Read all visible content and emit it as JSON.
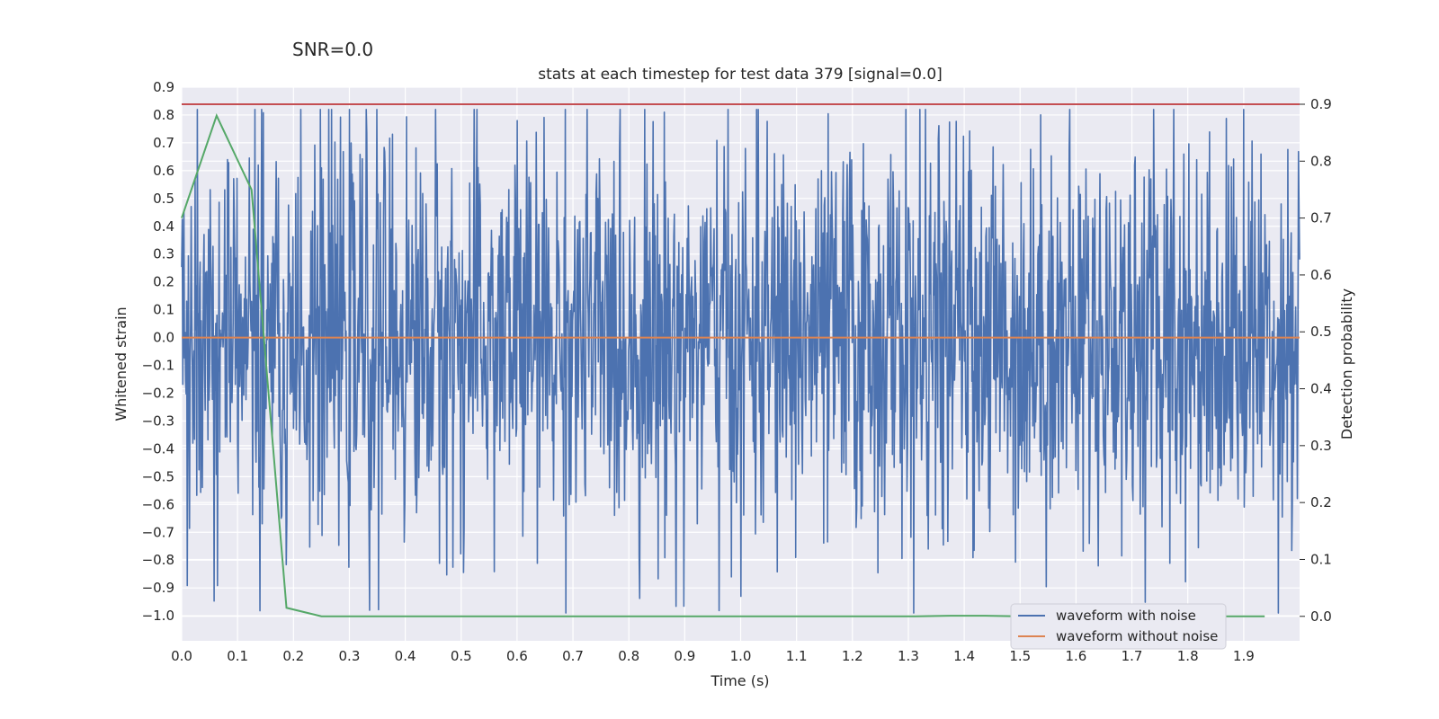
{
  "suptitle": "SNR=0.0",
  "chart_data": {
    "type": "line",
    "title": "stats at each timestep for test data 379 [signal=0.0]",
    "xlabel": "Time (s)",
    "ylabel": "Whitened strain",
    "y2label": "Detection probability",
    "xlim": [
      0.0,
      2.0
    ],
    "ylim": [
      -1.09,
      0.9
    ],
    "y2lim": [
      -0.043,
      0.93
    ],
    "x_ticks": [
      "0.0",
      "0.1",
      "0.2",
      "0.3",
      "0.4",
      "0.5",
      "0.6",
      "0.7",
      "0.8",
      "0.9",
      "1.0",
      "1.1",
      "1.2",
      "1.3",
      "1.4",
      "1.5",
      "1.6",
      "1.7",
      "1.8",
      "1.9"
    ],
    "y_ticks": [
      "0.9",
      "0.8",
      "0.7",
      "0.6",
      "0.5",
      "0.4",
      "0.3",
      "0.2",
      "0.1",
      "0.0",
      "−0.1",
      "−0.2",
      "−0.3",
      "−0.4",
      "−0.5",
      "−0.6",
      "−0.7",
      "−0.8",
      "−0.9",
      "−1.0"
    ],
    "y2_ticks": [
      "0.9",
      "0.8",
      "0.7",
      "0.6",
      "0.5",
      "0.4",
      "0.3",
      "0.2",
      "0.1",
      "0.0"
    ],
    "grid": true,
    "legend": {
      "placement": "lower-right",
      "entries": [
        "waveform with noise",
        "waveform without noise"
      ]
    },
    "colors": {
      "noise": "#4c72b0",
      "clean": "#dd8452",
      "probability": "#55a868",
      "threshold": "#c44e52",
      "background": "#eaeaf2"
    },
    "series": [
      {
        "name": "waveform with noise",
        "axis": "left",
        "noise_model": {
          "samples": 2000,
          "x_start": 0.0,
          "x_end": 2.0,
          "amplitude_typical": 0.35,
          "min": -0.99,
          "max": 0.82
        },
        "notable_points": [
          [
            0.336,
            -0.98
          ],
          [
            1.31,
            -0.99
          ],
          [
            1.775,
            0.82
          ],
          [
            0.6,
            0.78
          ],
          [
            1.0,
            -0.93
          ]
        ]
      },
      {
        "name": "waveform without noise",
        "axis": "left",
        "x": [
          0.0,
          2.0
        ],
        "y": [
          0.0,
          0.0
        ]
      },
      {
        "axis": "right",
        "x": [
          0.0,
          0.0625,
          0.125,
          0.1875,
          0.25,
          0.3125,
          0.375,
          0.4375,
          0.5,
          0.5625,
          0.625,
          0.6875,
          0.75,
          0.8125,
          0.875,
          0.9375,
          1.0,
          1.0625,
          1.125,
          1.1875,
          1.25,
          1.3125,
          1.375,
          1.4375,
          1.5,
          1.5625,
          1.625,
          1.6875,
          1.75,
          1.8125,
          1.875,
          1.9375
        ],
        "y": [
          0.7,
          0.88,
          0.75,
          0.015,
          0.0,
          0.0,
          0.0,
          0.0,
          0.0,
          0.0,
          0.0,
          0.0,
          0.0,
          0.0,
          0.0,
          0.0,
          0.0,
          0.0,
          0.0,
          0.0,
          0.0,
          0.0,
          0.001,
          0.001,
          0.0,
          0.0,
          0.0,
          0.0,
          0.0,
          0.0,
          0.0,
          0.0
        ]
      },
      {
        "axis": "right",
        "x": [
          0.0,
          2.0
        ],
        "y": [
          0.9,
          0.9
        ]
      }
    ]
  }
}
